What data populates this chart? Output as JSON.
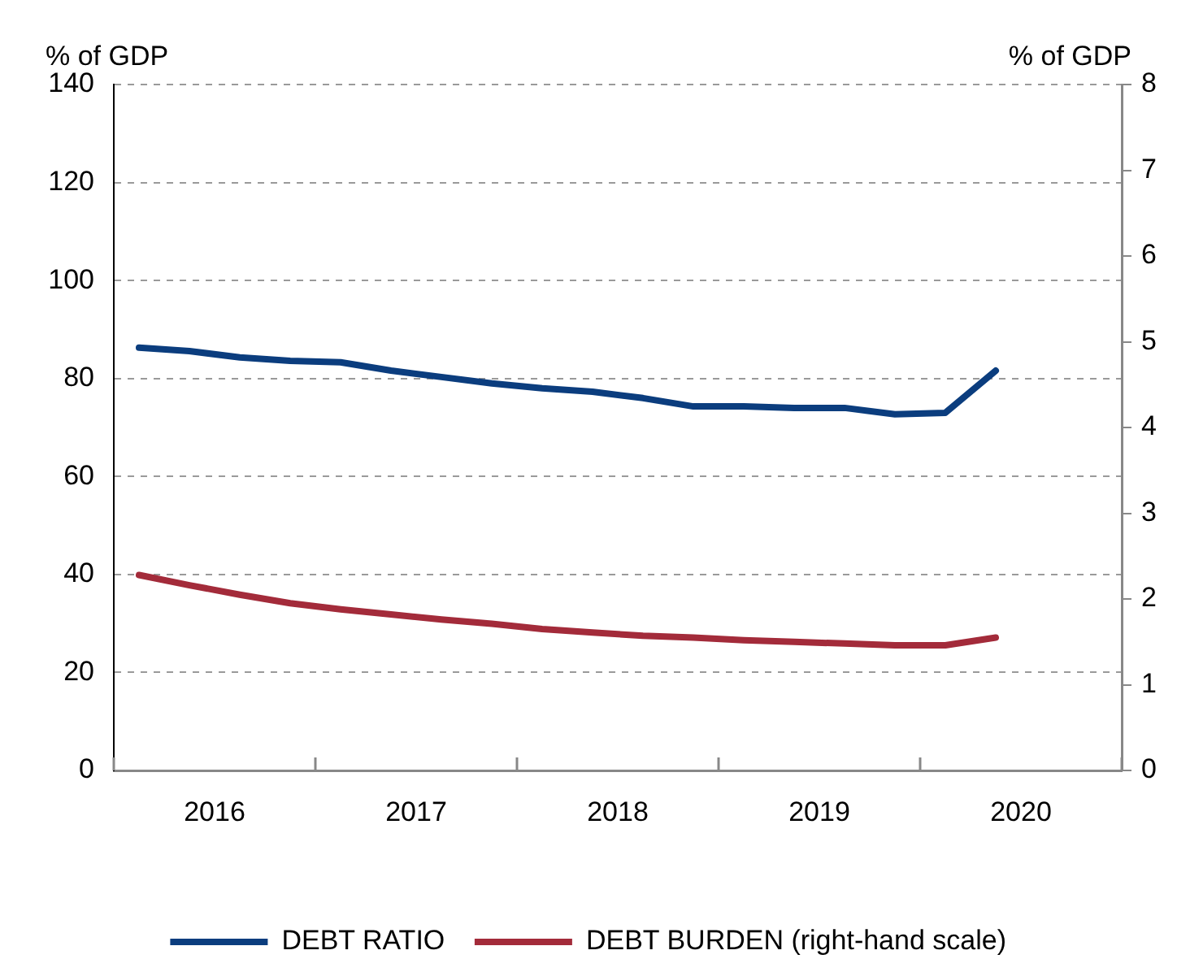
{
  "chart_data": {
    "type": "line",
    "ylabel": "% of GDP",
    "y2label": "% of GDP",
    "x": [
      2016.125,
      2016.375,
      2016.625,
      2016.875,
      2017.125,
      2017.375,
      2017.625,
      2017.875,
      2018.125,
      2018.375,
      2018.625,
      2018.875,
      2019.125,
      2019.375,
      2019.625,
      2019.875,
      2020.125,
      2020.375
    ],
    "series": [
      {
        "name": "DEBT RATIO",
        "color": "#0b3d7e",
        "values": [
          86.3,
          85.6,
          84.3,
          83.6,
          83.3,
          81.6,
          80.3,
          79,
          78,
          77.3,
          76,
          74.3,
          74.3,
          74,
          74,
          72.7,
          73,
          81.6
        ]
      },
      {
        "name": "DEBT BURDEN (right-hand scale)",
        "color": "#a32b3a",
        "axis": "y2",
        "values": [
          2.28,
          2.16,
          2.05,
          1.95,
          1.88,
          1.82,
          1.76,
          1.71,
          1.65,
          1.61,
          1.57,
          1.55,
          1.52,
          1.5,
          1.48,
          1.46,
          1.46,
          1.55
        ]
      }
    ],
    "xlim": [
      2016,
      2021
    ],
    "xticks": [
      {
        "value": 2016,
        "label": null
      },
      {
        "value": 2016.5,
        "label": "2016"
      },
      {
        "value": 2017,
        "label": null
      },
      {
        "value": 2017.5,
        "label": "2017"
      },
      {
        "value": 2018,
        "label": null
      },
      {
        "value": 2018.5,
        "label": "2018"
      },
      {
        "value": 2019,
        "label": null
      },
      {
        "value": 2019.5,
        "label": "2019"
      },
      {
        "value": 2020,
        "label": null
      },
      {
        "value": 2020.5,
        "label": "2020"
      },
      {
        "value": 2021,
        "label": null
      }
    ],
    "ylim": [
      0,
      140
    ],
    "yticks": [
      0,
      20,
      40,
      60,
      80,
      100,
      120,
      140
    ],
    "y2lim": [
      0,
      8
    ],
    "y2ticks": [
      0,
      1,
      2,
      3,
      4,
      5,
      6,
      7,
      8
    ],
    "grid": "y",
    "legend": "bottom",
    "marker": "none",
    "line_style": "solid"
  }
}
